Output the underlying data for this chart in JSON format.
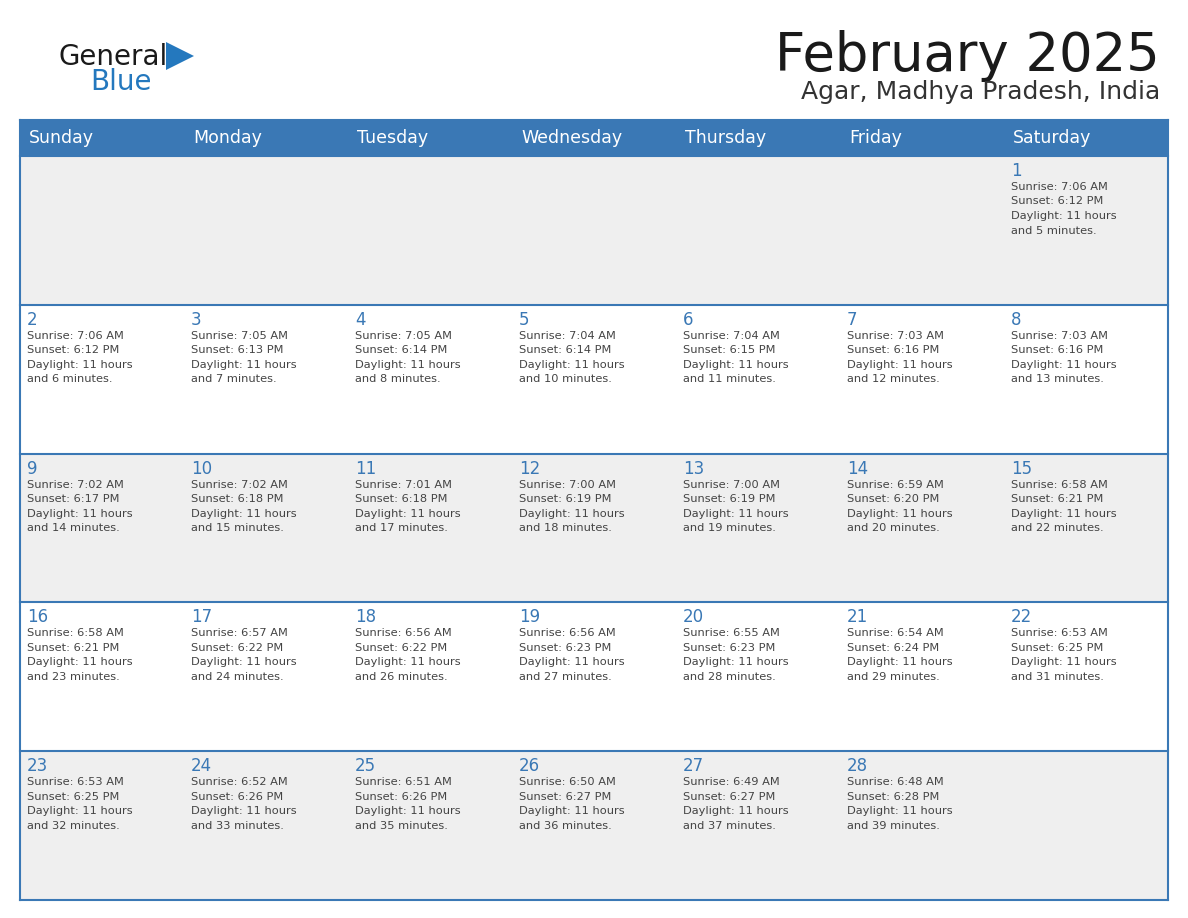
{
  "title": "February 2025",
  "subtitle": "Agar, Madhya Pradesh, India",
  "days_of_week": [
    "Sunday",
    "Monday",
    "Tuesday",
    "Wednesday",
    "Thursday",
    "Friday",
    "Saturday"
  ],
  "header_bg": "#3A78B5",
  "header_text": "#FFFFFF",
  "row_bg_light": "#EFEFEF",
  "row_bg_white": "#FFFFFF",
  "border_color": "#3A78B5",
  "day_num_color": "#3A78B5",
  "detail_color": "#444444",
  "title_color": "#1A1A1A",
  "subtitle_color": "#333333",
  "logo_general_color": "#1A1A1A",
  "logo_blue_color": "#2478BE",
  "calendar": [
    [
      null,
      null,
      null,
      null,
      null,
      null,
      {
        "day": 1,
        "sunrise": "7:06 AM",
        "sunset": "6:12 PM",
        "daylight_h": "11 hours",
        "daylight_m": "and 5 minutes."
      }
    ],
    [
      {
        "day": 2,
        "sunrise": "7:06 AM",
        "sunset": "6:12 PM",
        "daylight_h": "11 hours",
        "daylight_m": "and 6 minutes."
      },
      {
        "day": 3,
        "sunrise": "7:05 AM",
        "sunset": "6:13 PM",
        "daylight_h": "11 hours",
        "daylight_m": "and 7 minutes."
      },
      {
        "day": 4,
        "sunrise": "7:05 AM",
        "sunset": "6:14 PM",
        "daylight_h": "11 hours",
        "daylight_m": "and 8 minutes."
      },
      {
        "day": 5,
        "sunrise": "7:04 AM",
        "sunset": "6:14 PM",
        "daylight_h": "11 hours",
        "daylight_m": "and 10 minutes."
      },
      {
        "day": 6,
        "sunrise": "7:04 AM",
        "sunset": "6:15 PM",
        "daylight_h": "11 hours",
        "daylight_m": "and 11 minutes."
      },
      {
        "day": 7,
        "sunrise": "7:03 AM",
        "sunset": "6:16 PM",
        "daylight_h": "11 hours",
        "daylight_m": "and 12 minutes."
      },
      {
        "day": 8,
        "sunrise": "7:03 AM",
        "sunset": "6:16 PM",
        "daylight_h": "11 hours",
        "daylight_m": "and 13 minutes."
      }
    ],
    [
      {
        "day": 9,
        "sunrise": "7:02 AM",
        "sunset": "6:17 PM",
        "daylight_h": "11 hours",
        "daylight_m": "and 14 minutes."
      },
      {
        "day": 10,
        "sunrise": "7:02 AM",
        "sunset": "6:18 PM",
        "daylight_h": "11 hours",
        "daylight_m": "and 15 minutes."
      },
      {
        "day": 11,
        "sunrise": "7:01 AM",
        "sunset": "6:18 PM",
        "daylight_h": "11 hours",
        "daylight_m": "and 17 minutes."
      },
      {
        "day": 12,
        "sunrise": "7:00 AM",
        "sunset": "6:19 PM",
        "daylight_h": "11 hours",
        "daylight_m": "and 18 minutes."
      },
      {
        "day": 13,
        "sunrise": "7:00 AM",
        "sunset": "6:19 PM",
        "daylight_h": "11 hours",
        "daylight_m": "and 19 minutes."
      },
      {
        "day": 14,
        "sunrise": "6:59 AM",
        "sunset": "6:20 PM",
        "daylight_h": "11 hours",
        "daylight_m": "and 20 minutes."
      },
      {
        "day": 15,
        "sunrise": "6:58 AM",
        "sunset": "6:21 PM",
        "daylight_h": "11 hours",
        "daylight_m": "and 22 minutes."
      }
    ],
    [
      {
        "day": 16,
        "sunrise": "6:58 AM",
        "sunset": "6:21 PM",
        "daylight_h": "11 hours",
        "daylight_m": "and 23 minutes."
      },
      {
        "day": 17,
        "sunrise": "6:57 AM",
        "sunset": "6:22 PM",
        "daylight_h": "11 hours",
        "daylight_m": "and 24 minutes."
      },
      {
        "day": 18,
        "sunrise": "6:56 AM",
        "sunset": "6:22 PM",
        "daylight_h": "11 hours",
        "daylight_m": "and 26 minutes."
      },
      {
        "day": 19,
        "sunrise": "6:56 AM",
        "sunset": "6:23 PM",
        "daylight_h": "11 hours",
        "daylight_m": "and 27 minutes."
      },
      {
        "day": 20,
        "sunrise": "6:55 AM",
        "sunset": "6:23 PM",
        "daylight_h": "11 hours",
        "daylight_m": "and 28 minutes."
      },
      {
        "day": 21,
        "sunrise": "6:54 AM",
        "sunset": "6:24 PM",
        "daylight_h": "11 hours",
        "daylight_m": "and 29 minutes."
      },
      {
        "day": 22,
        "sunrise": "6:53 AM",
        "sunset": "6:25 PM",
        "daylight_h": "11 hours",
        "daylight_m": "and 31 minutes."
      }
    ],
    [
      {
        "day": 23,
        "sunrise": "6:53 AM",
        "sunset": "6:25 PM",
        "daylight_h": "11 hours",
        "daylight_m": "and 32 minutes."
      },
      {
        "day": 24,
        "sunrise": "6:52 AM",
        "sunset": "6:26 PM",
        "daylight_h": "11 hours",
        "daylight_m": "and 33 minutes."
      },
      {
        "day": 25,
        "sunrise": "6:51 AM",
        "sunset": "6:26 PM",
        "daylight_h": "11 hours",
        "daylight_m": "and 35 minutes."
      },
      {
        "day": 26,
        "sunrise": "6:50 AM",
        "sunset": "6:27 PM",
        "daylight_h": "11 hours",
        "daylight_m": "and 36 minutes."
      },
      {
        "day": 27,
        "sunrise": "6:49 AM",
        "sunset": "6:27 PM",
        "daylight_h": "11 hours",
        "daylight_m": "and 37 minutes."
      },
      {
        "day": 28,
        "sunrise": "6:48 AM",
        "sunset": "6:28 PM",
        "daylight_h": "11 hours",
        "daylight_m": "and 39 minutes."
      },
      null
    ]
  ]
}
